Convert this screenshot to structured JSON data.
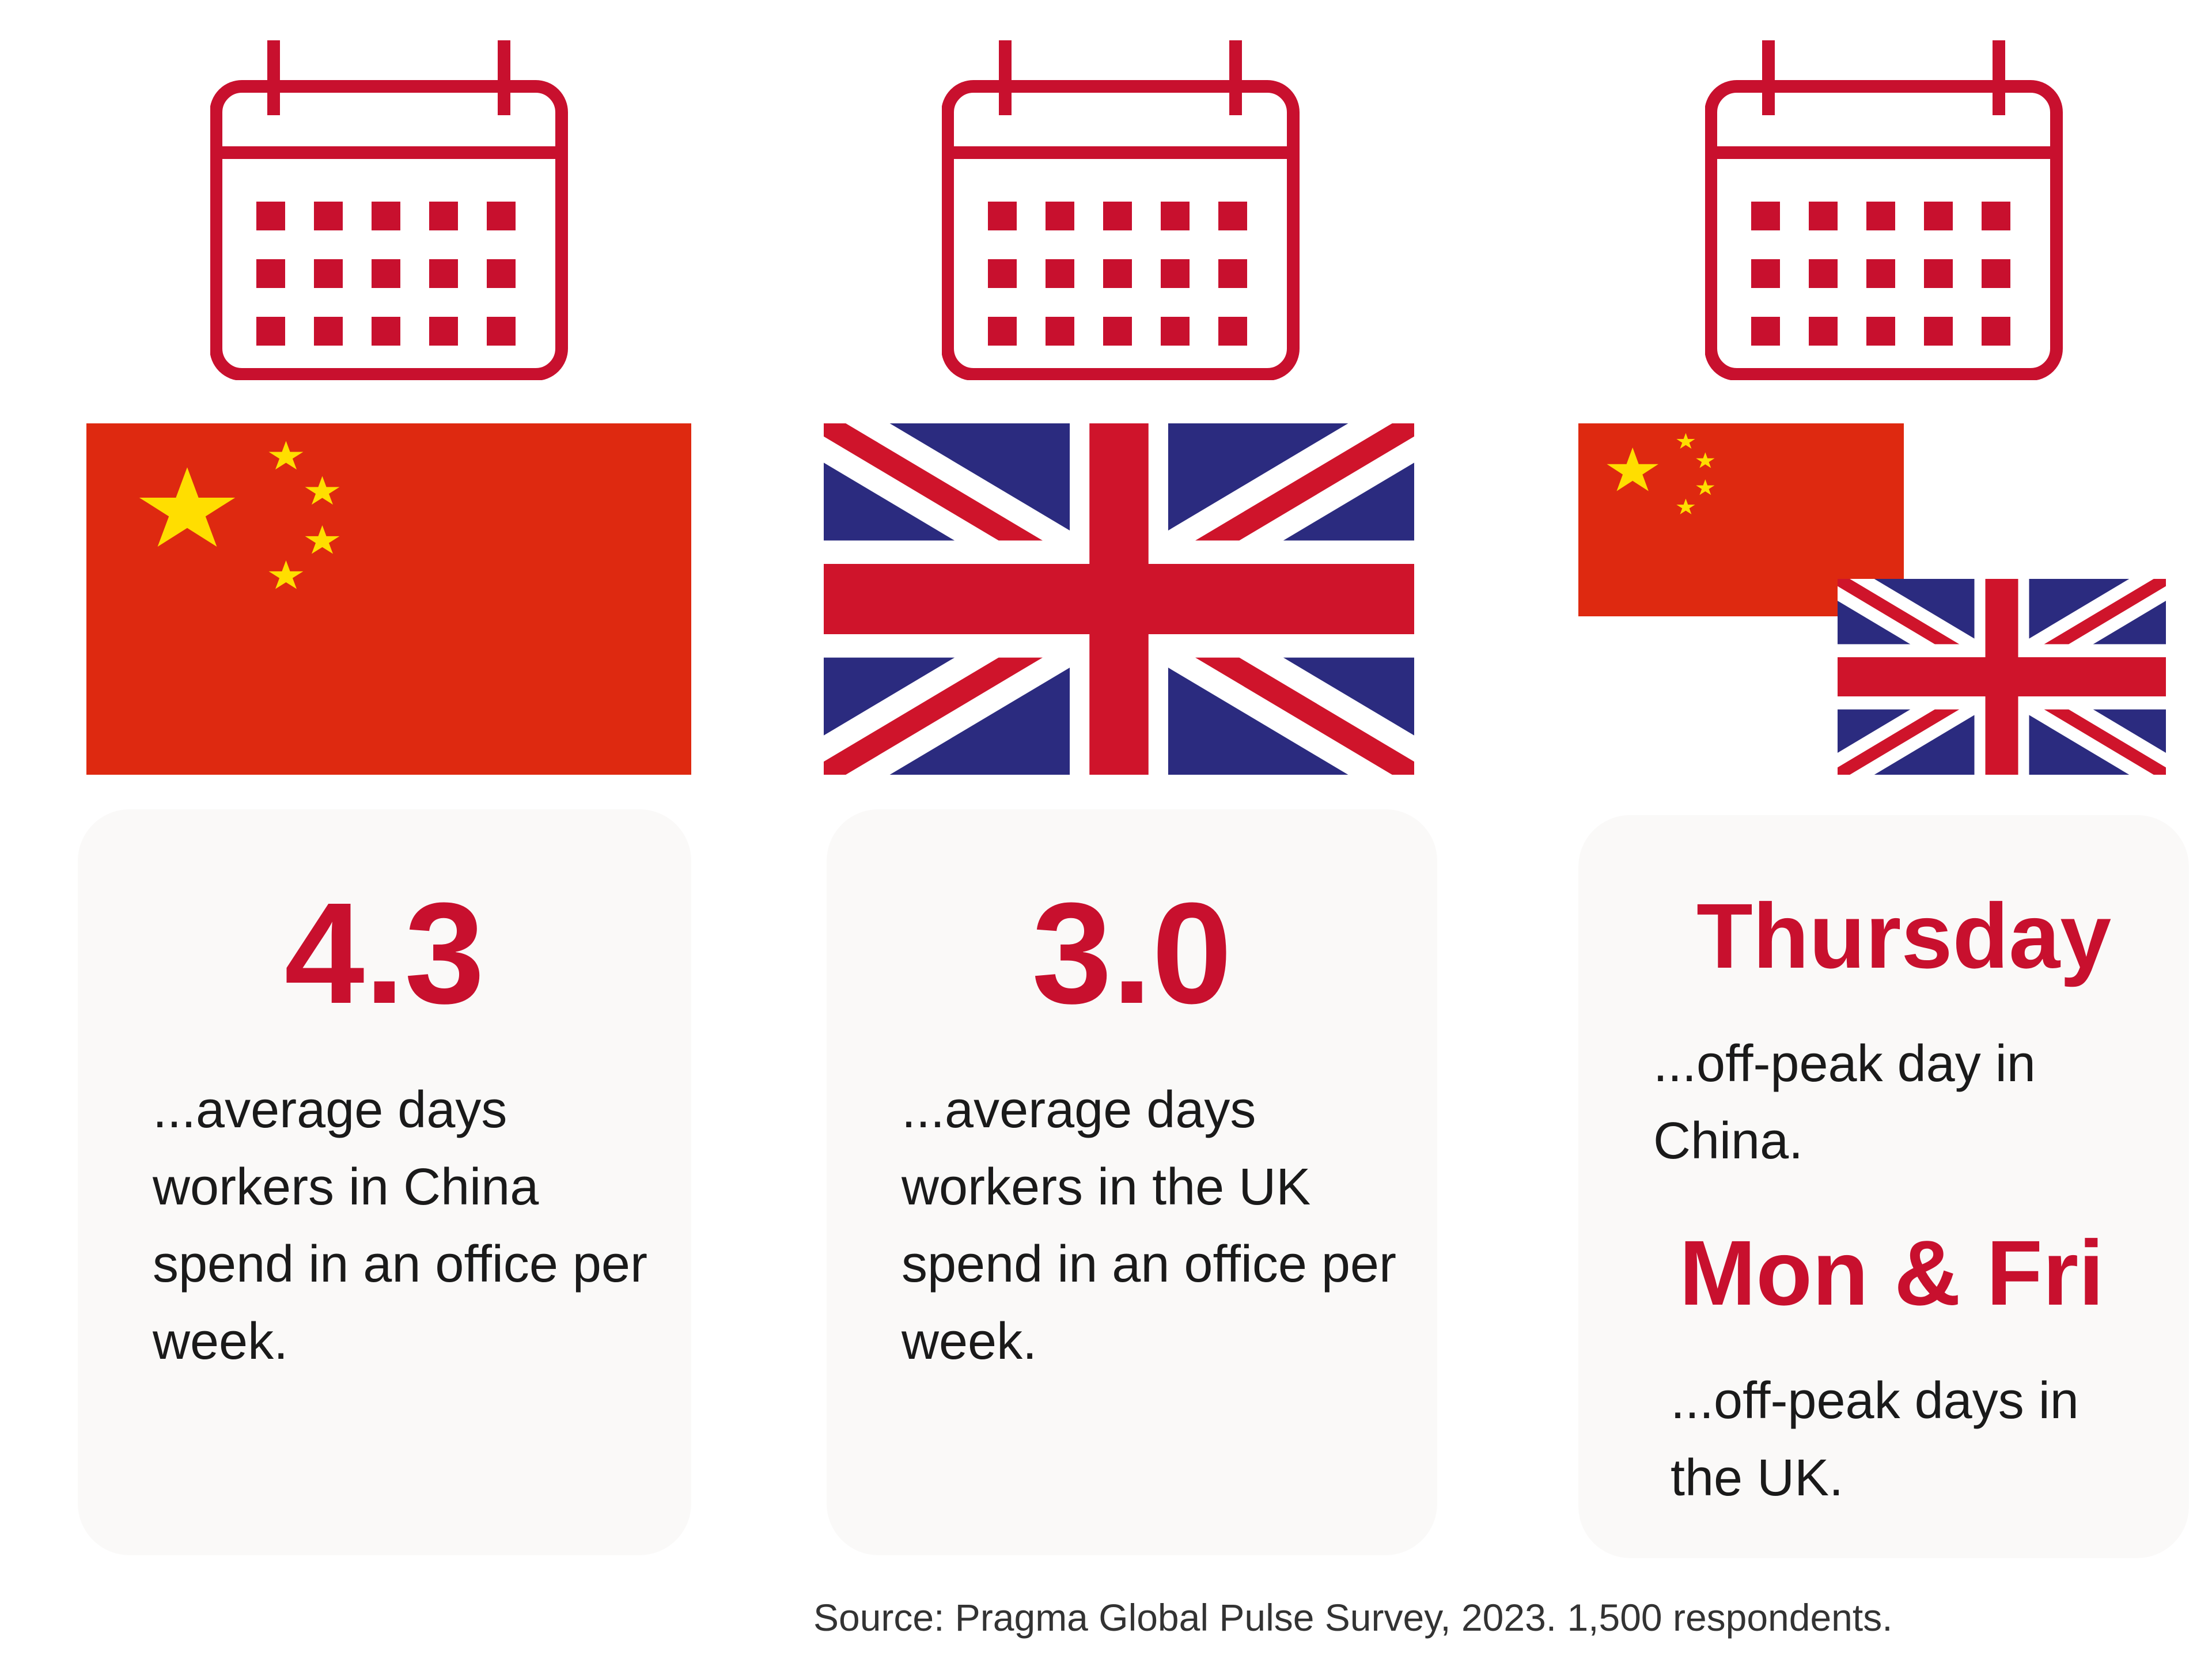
{
  "columns": [
    {
      "id": "china",
      "stat": "4.3",
      "desc": "...average days workers in China spend in an office per week."
    },
    {
      "id": "uk",
      "stat": "3.0",
      "desc": "...average days workers in the UK spend in an office per week."
    },
    {
      "id": "both",
      "china_day": "Thursday",
      "china_desc": "...off-peak day in China.",
      "uk_days": "Mon & Fri",
      "uk_desc": "...off-peak days in the UK."
    }
  ],
  "source": "Source: Pragma Global Pulse Survey, 2023. 1,500 respondents.",
  "icons": [
    "calendar-icon",
    "china-flag-icon",
    "uk-flag-icon"
  ],
  "colors": {
    "accent": "#c8102e",
    "china_red": "#de2910",
    "china_star": "#ffde00",
    "uk_blue": "#2b2b7f",
    "uk_red": "#cf142b",
    "card_bg": "#faf9f8"
  }
}
